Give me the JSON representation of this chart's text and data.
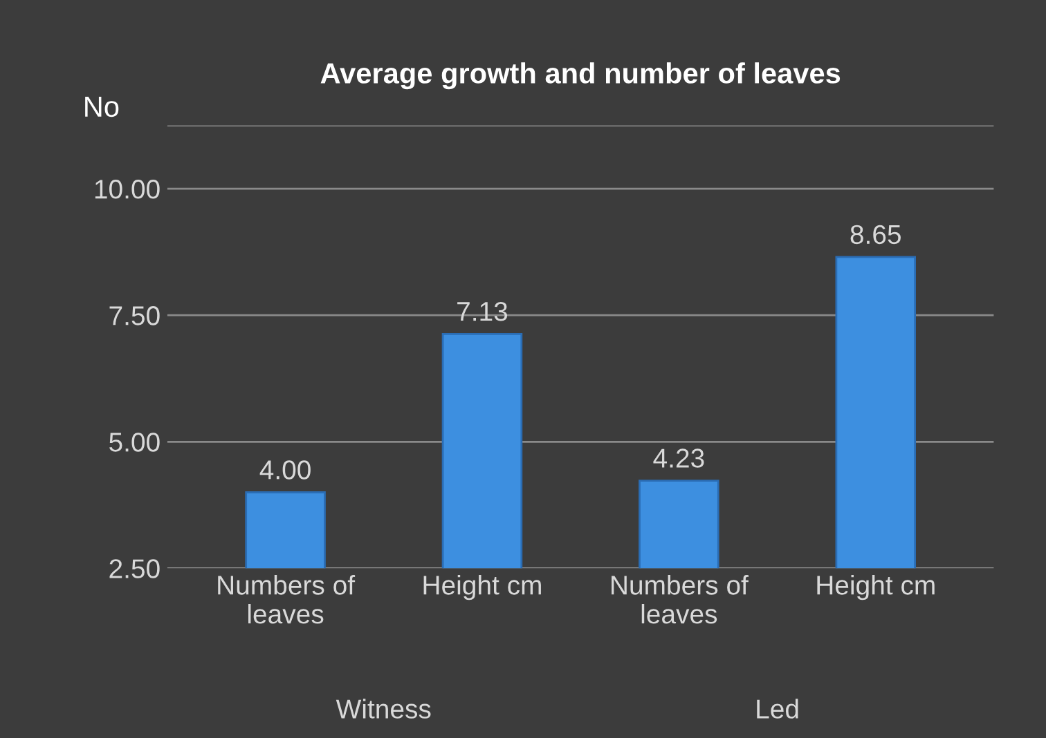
{
  "chart_data": {
    "type": "bar",
    "title": "Average growth and number of leaves",
    "ylabel": "No",
    "categories": [
      "Numbers of\nleaves",
      "Height cm",
      "Numbers of\nleaves",
      "Height cm"
    ],
    "values": [
      4.0,
      7.13,
      4.23,
      8.65
    ],
    "color": "#3d8fe0",
    "ylim": [
      2.5,
      11.25
    ],
    "yticks": [
      {
        "value": 2.5,
        "label": "2.50"
      },
      {
        "value": 5,
        "label": "5.00"
      },
      {
        "value": 7.5,
        "label": "7.50"
      },
      {
        "value": 10,
        "label": "10.00"
      },
      {
        "value": 11.25,
        "label": null
      }
    ],
    "value_labels": [
      "4.00",
      "7.13",
      "4.23",
      "8.65"
    ],
    "annotations": [
      "Witness",
      "Led"
    ],
    "grid": "y",
    "legend": false
  }
}
